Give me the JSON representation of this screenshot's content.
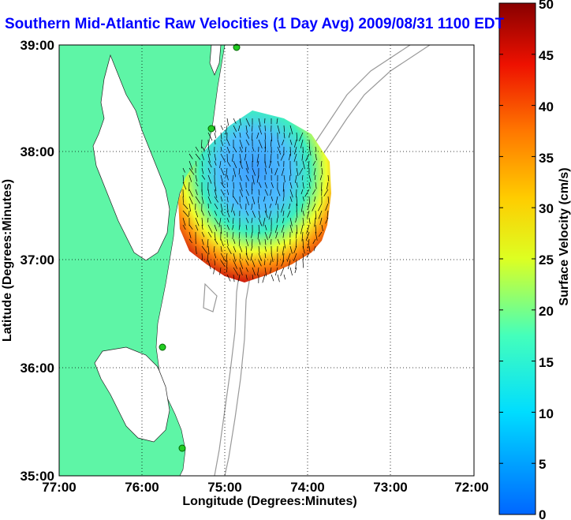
{
  "title": "Southern Mid-Atlantic Raw Velocities (1 Day Avg) 2009/08/31 1100 EDT",
  "map": {
    "x_ticks": [
      "77:00",
      "76:00",
      "75:00",
      "74:00",
      "73:00",
      "72:00"
    ],
    "y_ticks": [
      "39:00",
      "38:00",
      "37:00",
      "36:00",
      "35:00"
    ],
    "xlabel": "Longitude (Degrees:Minutes)",
    "ylabel": "Latitude (Degrees:Minutes)",
    "lon_range": [
      -77,
      -72
    ],
    "lat_range": [
      35,
      39
    ],
    "grid": "dotted",
    "colors": {
      "land": "#5ef5a6",
      "water": "#ffffff",
      "bathymetry": "#999999",
      "site_marker": "#22cc22"
    }
  },
  "colorbar": {
    "label": "Surface Velocity (cm/s)",
    "ticks": [
      "50",
      "45",
      "40",
      "35",
      "30",
      "25",
      "20",
      "15",
      "10",
      "5",
      "0"
    ],
    "min": 0,
    "max": 50,
    "colormap": "jet"
  }
}
